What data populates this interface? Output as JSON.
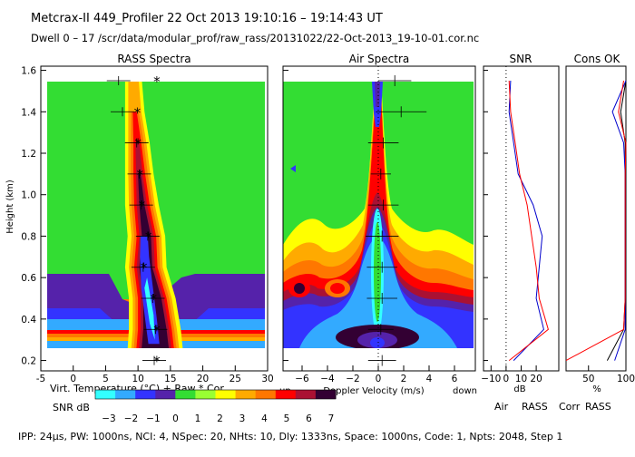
{
  "header": {
    "title_line": "Metcrax-II  449_Profiler  22 Oct 2013  19:10:16 – 19:14:43 UT",
    "dwell_line": "Dwell  0 – 17   /scr/data/modular_prof/raw_rass/20131022/22-Oct-2013_19-10-01.cor.nc"
  },
  "colors": {
    "scale": [
      "#33ffff",
      "#33aaff",
      "#3333ff",
      "#5522aa",
      "#33dd33",
      "#99ff33",
      "#ffff00",
      "#ffaa00",
      "#ff7700",
      "#ff0000",
      "#aa1133",
      "#330033"
    ],
    "air_line": "#0000cc",
    "rass_line": "#ff0000",
    "corr_line": "#000000"
  },
  "colorbar": {
    "label": "SNR dB",
    "ticks": [
      "−3",
      "−2",
      "−1",
      "0",
      "1",
      "2",
      "3",
      "4",
      "5",
      "6",
      "7"
    ]
  },
  "footer": {
    "params": "IPP:  24μs,  PW: 1000ns,  NCI: 4,  NSpec: 20, NHts: 10,  Dly: 1333ns,  Space: 1000ns,  Code: 1,  Npts: 2048,  Step 1"
  },
  "chart_data": [
    {
      "id": "rass",
      "type": "heatmap",
      "title": "RASS Spectra",
      "xlabel": "Virt. Temperature (°C)   + Raw   * Cor",
      "ylabel": "Height (km)",
      "xlim": [
        -5,
        30
      ],
      "ylim": [
        0.15,
        1.62
      ],
      "xticks": [
        -5,
        0,
        5,
        10,
        15,
        20,
        25,
        30
      ],
      "yticks": [
        0.2,
        0.4,
        0.6,
        0.8,
        1.0,
        1.2,
        1.4,
        1.6
      ],
      "yticklabels": [
        "0.2",
        "0.4",
        "0.6",
        "0.8",
        "1.0",
        "1.2",
        "1.4",
        "1.6"
      ],
      "heights": [
        0.2,
        0.35,
        0.5,
        0.65,
        0.8,
        0.95,
        1.1,
        1.25,
        1.4,
        1.55
      ],
      "raw": [
        12.5,
        12.7,
        12.3,
        10.8,
        11.5,
        10.5,
        10.2,
        9.8,
        7.6,
        7.0
      ],
      "cor": [
        12.9,
        12.9,
        12.4,
        10.9,
        11.6,
        10.6,
        10.3,
        10.0,
        9.9,
        12.9
      ]
    },
    {
      "id": "air",
      "type": "heatmap",
      "title": "Air Spectra",
      "xlabel": "Doppler Velocity (m/s)",
      "xlabel_left": "up",
      "xlabel_right": "down",
      "xlim": [
        -7.5,
        7.5
      ],
      "ylim": [
        0.15,
        1.62
      ],
      "xticks": [
        -6,
        -4,
        -2,
        0,
        2,
        4,
        6
      ],
      "heights": [
        0.2,
        0.35,
        0.5,
        0.65,
        0.8,
        0.95,
        1.1,
        1.25,
        1.4,
        1.55
      ],
      "center": [
        0.3,
        0.2,
        0.3,
        0.3,
        0.3,
        0.4,
        0.2,
        0.4,
        1.8,
        1.3
      ],
      "halfwidth": [
        1.1,
        1.0,
        1.2,
        1.2,
        1.3,
        1.2,
        0.8,
        1.2,
        2.0,
        1.3
      ]
    },
    {
      "id": "snr",
      "type": "line",
      "title": "SNR",
      "xlabel": "dB",
      "xlim": [
        -15,
        35
      ],
      "ylim": [
        0.15,
        1.62
      ],
      "xticks": [
        -10,
        0,
        10,
        20
      ],
      "xticklabels": [
        "−10",
        "0",
        "10",
        "20"
      ],
      "series": [
        {
          "name": "Air",
          "heights": [
            0.2,
            0.35,
            0.5,
            0.65,
            0.8,
            0.95,
            1.1,
            1.25,
            1.4,
            1.55
          ],
          "values": [
            5,
            25,
            20,
            22,
            24,
            18,
            8,
            5,
            2,
            3
          ]
        },
        {
          "name": "RASS",
          "heights": [
            0.2,
            0.35,
            0.5,
            0.65,
            0.8,
            0.95,
            1.1,
            1.25,
            1.4,
            1.55
          ],
          "values": [
            2,
            28,
            22,
            20,
            17,
            14,
            9,
            6,
            3,
            2
          ]
        }
      ]
    },
    {
      "id": "cons",
      "type": "line",
      "title": "Cons OK",
      "xlabel": "%",
      "xlim": [
        20,
        100
      ],
      "ylim": [
        0.15,
        1.62
      ],
      "xticks": [
        50,
        100
      ],
      "series": [
        {
          "name": "Corr",
          "heights": [
            0.2,
            0.35,
            0.5,
            0.65,
            0.8,
            0.95,
            1.1,
            1.25,
            1.4,
            1.55
          ],
          "values": [
            75,
            97,
            99,
            99,
            99,
            99,
            99,
            99,
            93,
            100
          ]
        },
        {
          "name": "Air",
          "heights": [
            0.2,
            0.35,
            0.5,
            0.65,
            0.8,
            0.95,
            1.1,
            1.25,
            1.4,
            1.55
          ],
          "values": [
            85,
            99,
            99,
            99,
            99,
            99,
            99,
            97,
            82,
            100
          ]
        },
        {
          "name": "RASS",
          "heights": [
            0.2,
            0.35,
            0.5,
            0.65,
            0.8,
            0.95,
            1.1,
            1.25,
            1.4,
            1.55
          ],
          "values": [
            20,
            97,
            99,
            99,
            99,
            99,
            99,
            100,
            90,
            97
          ]
        }
      ]
    }
  ]
}
